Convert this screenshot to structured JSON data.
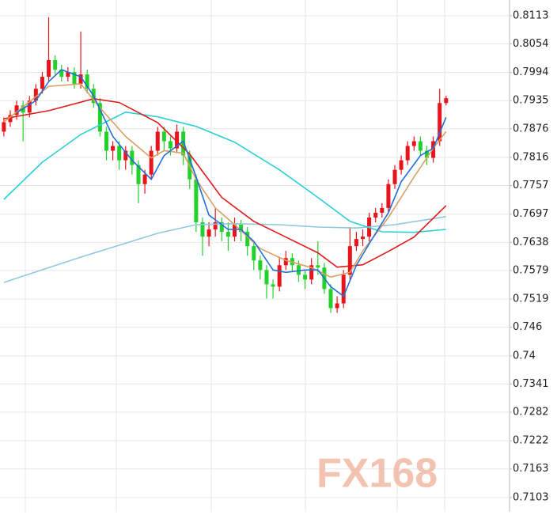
{
  "chart_data": {
    "type": "candlestick",
    "watermark": "FX168",
    "up_color": "#e8141b",
    "down_color": "#22d12a",
    "grid": true,
    "ylim": [
      0.7073,
      0.8146
    ],
    "yticks": [
      0.8113,
      0.8054,
      0.7994,
      0.7935,
      0.7876,
      0.7816,
      0.7757,
      0.7697,
      0.7638,
      0.7579,
      0.7519,
      0.746,
      0.74,
      0.7341,
      0.7282,
      0.7222,
      0.7163,
      0.7103
    ],
    "xlim": [
      -0.6,
      78.9
    ],
    "open": [
      0.787,
      0.789,
      0.7905,
      0.7925,
      0.791,
      0.7935,
      0.796,
      0.7985,
      0.802,
      0.8,
      0.7985,
      0.7995,
      0.797,
      0.799,
      0.796,
      0.793,
      0.787,
      0.783,
      0.784,
      0.781,
      0.783,
      0.78,
      0.776,
      0.778,
      0.783,
      0.787,
      0.785,
      0.7835,
      0.787,
      0.782,
      0.777,
      0.768,
      0.765,
      0.7665,
      0.768,
      0.766,
      0.765,
      0.7675,
      0.766,
      0.763,
      0.76,
      0.758,
      0.755,
      0.7545,
      0.759,
      0.7605,
      0.759,
      0.757,
      0.756,
      0.759,
      0.7585,
      0.754,
      0.75,
      0.751,
      0.757,
      0.763,
      0.7645,
      0.765,
      0.769,
      0.77,
      0.771,
      0.776,
      0.779,
      0.781,
      0.784,
      0.785,
      0.783,
      0.7815,
      0.785,
      0.793
    ],
    "high": [
      0.79,
      0.7915,
      0.7935,
      0.7935,
      0.7945,
      0.797,
      0.7995,
      0.811,
      0.803,
      0.801,
      0.8005,
      0.8005,
      0.808,
      0.8,
      0.797,
      0.794,
      0.788,
      0.785,
      0.785,
      0.784,
      0.784,
      0.781,
      0.779,
      0.784,
      0.788,
      0.788,
      0.786,
      0.7885,
      0.788,
      0.783,
      0.778,
      0.769,
      0.768,
      0.771,
      0.769,
      0.768,
      0.769,
      0.7685,
      0.767,
      0.764,
      0.761,
      0.759,
      0.756,
      0.7605,
      0.762,
      0.7615,
      0.76,
      0.758,
      0.7605,
      0.764,
      0.7595,
      0.755,
      0.7525,
      0.758,
      0.767,
      0.766,
      0.7665,
      0.77,
      0.771,
      0.772,
      0.777,
      0.78,
      0.782,
      0.785,
      0.786,
      0.786,
      0.784,
      0.786,
      0.796,
      0.7945
    ],
    "low": [
      0.786,
      0.788,
      0.7895,
      0.785,
      0.79,
      0.7925,
      0.795,
      0.7975,
      0.799,
      0.7975,
      0.7975,
      0.796,
      0.796,
      0.795,
      0.792,
      0.786,
      0.781,
      0.781,
      0.779,
      0.779,
      0.778,
      0.772,
      0.774,
      0.777,
      0.782,
      0.783,
      0.782,
      0.7825,
      0.78,
      0.775,
      0.766,
      0.761,
      0.763,
      0.765,
      0.764,
      0.762,
      0.764,
      0.764,
      0.761,
      0.758,
      0.756,
      0.752,
      0.752,
      0.7535,
      0.758,
      0.7575,
      0.7555,
      0.754,
      0.755,
      0.757,
      0.753,
      0.749,
      0.749,
      0.75,
      0.756,
      0.762,
      0.763,
      0.764,
      0.768,
      0.769,
      0.77,
      0.775,
      0.778,
      0.78,
      0.783,
      0.782,
      0.78,
      0.7805,
      0.784,
      0.7925
    ],
    "close": [
      0.789,
      0.7905,
      0.7925,
      0.791,
      0.7935,
      0.796,
      0.7985,
      0.802,
      0.8,
      0.7985,
      0.7995,
      0.797,
      0.799,
      0.796,
      0.793,
      0.787,
      0.783,
      0.784,
      0.781,
      0.783,
      0.78,
      0.776,
      0.778,
      0.783,
      0.787,
      0.785,
      0.7835,
      0.787,
      0.782,
      0.777,
      0.768,
      0.765,
      0.7665,
      0.768,
      0.766,
      0.765,
      0.7675,
      0.766,
      0.763,
      0.76,
      0.758,
      0.755,
      0.7545,
      0.759,
      0.7605,
      0.759,
      0.757,
      0.756,
      0.759,
      0.7585,
      0.754,
      0.75,
      0.751,
      0.757,
      0.763,
      0.7645,
      0.765,
      0.769,
      0.77,
      0.771,
      0.776,
      0.779,
      0.781,
      0.784,
      0.785,
      0.783,
      0.7815,
      0.785,
      0.793,
      0.794
    ],
    "lines": [
      {
        "color": "#8ec8dc",
        "x": [
          0,
          12,
          24,
          30,
          36,
          43,
          49,
          55,
          61,
          69
        ],
        "values": [
          0.7554,
          0.7607,
          0.7657,
          0.7675,
          0.7677,
          0.7675,
          0.767,
          0.7668,
          0.7675,
          0.7692
        ]
      },
      {
        "color": "#2ccfd6",
        "x": [
          0,
          6,
          12,
          19,
          24,
          30,
          36,
          43,
          49,
          54,
          59,
          64,
          69
        ],
        "values": [
          0.7728,
          0.7806,
          0.7864,
          0.7911,
          0.7901,
          0.7881,
          0.7848,
          0.779,
          0.7732,
          0.7682,
          0.766,
          0.7659,
          0.7665
        ]
      },
      {
        "color": "#e01a1a",
        "x": [
          0,
          7,
          14,
          18,
          24,
          29,
          34,
          39,
          44,
          49,
          52,
          56,
          60,
          64,
          69
        ],
        "values": [
          0.7897,
          0.7914,
          0.7939,
          0.7931,
          0.7889,
          0.7823,
          0.7732,
          0.7682,
          0.7649,
          0.7616,
          0.7586,
          0.7591,
          0.7619,
          0.7649,
          0.7715
        ]
      },
      {
        "color": "#d9a066",
        "x": [
          0,
          7,
          12,
          15,
          19,
          23,
          25,
          28,
          30,
          33,
          36,
          40,
          44,
          48,
          51,
          54,
          56,
          60,
          64,
          67,
          69
        ],
        "values": [
          0.789,
          0.7965,
          0.797,
          0.792,
          0.786,
          0.7815,
          0.783,
          0.7825,
          0.777,
          0.771,
          0.7675,
          0.7625,
          0.76,
          0.7585,
          0.7565,
          0.7575,
          0.762,
          0.769,
          0.7775,
          0.7835,
          0.787
        ]
      },
      {
        "color": "#1f6fd6",
        "x": [
          2,
          5,
          7,
          9,
          12,
          14,
          17,
          20,
          23,
          25,
          28,
          30,
          32,
          35,
          37,
          39,
          42,
          44,
          47,
          49,
          51,
          53,
          55,
          57,
          60,
          62,
          65,
          67,
          69
        ],
        "values": [
          0.791,
          0.7935,
          0.7975,
          0.8,
          0.7985,
          0.7945,
          0.786,
          0.781,
          0.777,
          0.782,
          0.785,
          0.7775,
          0.7695,
          0.7665,
          0.7665,
          0.764,
          0.758,
          0.7575,
          0.758,
          0.758,
          0.7545,
          0.7525,
          0.759,
          0.7635,
          0.77,
          0.7765,
          0.782,
          0.7835,
          0.79
        ]
      }
    ]
  }
}
